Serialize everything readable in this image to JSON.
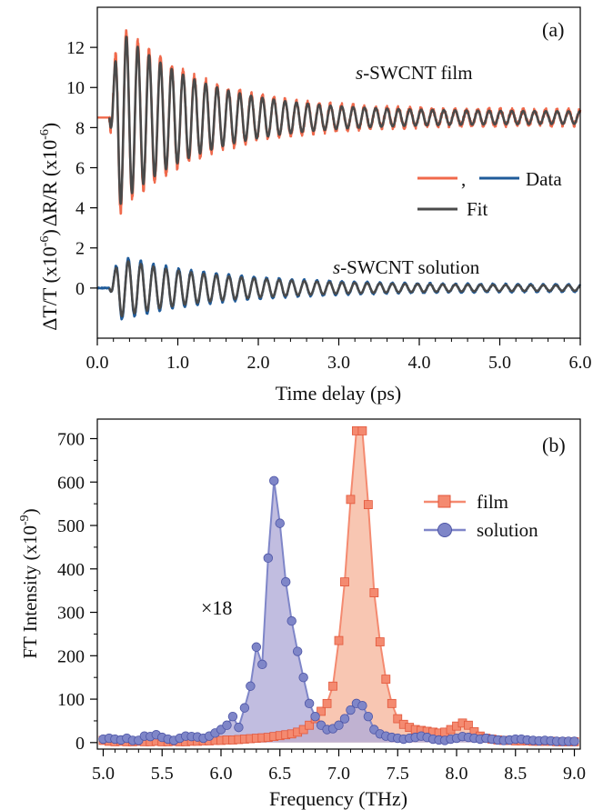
{
  "colors": {
    "film": "#f0694b",
    "film_fill": "#f7bca5",
    "film_marker": "#f48a70",
    "solution": "#1f5b9a",
    "solution_fill": "#b1acd8",
    "solution_marker": "#7f86c8",
    "fit": "#4a4a4a"
  },
  "chart_data": [
    {
      "type": "line",
      "panel_label": "(a)",
      "xlabel": "Time delay (ps)",
      "xlim": [
        0,
        6
      ],
      "xticks": [
        "0.0",
        "1.0",
        "2.0",
        "3.0",
        "4.0",
        "5.0",
        "6.0"
      ],
      "ylabel_top": "ΔR/R (x10",
      "ylabel_top_exp": "-6",
      "ylabel_bottom": "ΔT/T (x10",
      "ylabel_bottom_exp": "-6",
      "ylim": [
        -2.5,
        14
      ],
      "yticks": [
        "0",
        "2",
        "4",
        "6",
        "8",
        "10",
        "12"
      ],
      "legend": {
        "comma": ",",
        "data_label": "Data",
        "fit_label": "Fit",
        "placement": "right"
      },
      "annotations": [
        {
          "italic": "s",
          "rest": "-SWCNT film"
        },
        {
          "italic": "s",
          "rest": "-SWCNT solution"
        }
      ],
      "series": [
        {
          "role": "film-data",
          "baseline": 8.5,
          "t0": 0.15,
          "start_level": 8.5,
          "amplitude": 5.0,
          "decay_tau": 1.0,
          "residual_amplitude": 0.32,
          "frequency_thz": 7.1,
          "noise": 0.25
        },
        {
          "role": "film-fit",
          "baseline": 8.5,
          "t0": 0.15,
          "amplitude": 4.6,
          "decay_tau": 1.0,
          "residual_amplitude": 0.3,
          "frequency_thz": 7.1
        },
        {
          "role": "solution-data",
          "baseline": 0,
          "t0": 0.15,
          "amplitude": 1.6,
          "decay_tau": 1.3,
          "residual_amplitude": 0.15,
          "frequency_thz": 6.4,
          "noise": 0.08
        },
        {
          "role": "solution-fit",
          "baseline": 0,
          "t0": 0.15,
          "amplitude": 1.45,
          "decay_tau": 1.3,
          "residual_amplitude": 0.12,
          "frequency_thz": 6.4
        }
      ]
    },
    {
      "type": "area",
      "panel_label": "(b)",
      "xlabel": "Frequency (THz)",
      "xlim": [
        4.95,
        9.05
      ],
      "xticks": [
        "5.0",
        "5.5",
        "6.0",
        "6.5",
        "7.0",
        "7.5",
        "8.0",
        "8.5",
        "9.0"
      ],
      "ylabel": "FT Intensity (x10",
      "ylabel_exp": "-9",
      "ylim": [
        -15,
        745
      ],
      "yticks": [
        "0",
        "100",
        "200",
        "300",
        "400",
        "500",
        "600",
        "700"
      ],
      "annotation": "×18",
      "series": [
        {
          "name": "film",
          "marker": "square",
          "x": [
            5.0,
            5.05,
            5.1,
            5.15,
            5.2,
            5.25,
            5.3,
            5.35,
            5.4,
            5.45,
            5.5,
            5.55,
            5.6,
            5.65,
            5.7,
            5.75,
            5.8,
            5.85,
            5.9,
            5.95,
            6.0,
            6.05,
            6.1,
            6.15,
            6.2,
            6.25,
            6.3,
            6.35,
            6.4,
            6.45,
            6.5,
            6.55,
            6.6,
            6.65,
            6.7,
            6.75,
            6.8,
            6.85,
            6.9,
            6.95,
            7.0,
            7.05,
            7.1,
            7.15,
            7.2,
            7.25,
            7.3,
            7.35,
            7.4,
            7.45,
            7.5,
            7.55,
            7.6,
            7.65,
            7.7,
            7.75,
            7.8,
            7.85,
            7.9,
            7.95,
            8.0,
            8.05,
            8.1,
            8.15,
            8.2,
            8.25,
            8.3,
            8.35,
            8.4,
            8.45,
            8.5,
            8.55,
            8.6,
            8.65,
            8.7,
            8.75,
            8.8,
            8.85,
            8.9,
            8.95,
            9.0
          ],
          "y": [
            5,
            3,
            2,
            3,
            2,
            2,
            3,
            2,
            2,
            3,
            2,
            2,
            3,
            2,
            2,
            3,
            3,
            4,
            4,
            5,
            5,
            6,
            6,
            7,
            8,
            9,
            10,
            11,
            12,
            14,
            16,
            18,
            20,
            24,
            30,
            40,
            55,
            72,
            90,
            130,
            235,
            370,
            560,
            718,
            718,
            548,
            345,
            232,
            146,
            90,
            55,
            42,
            35,
            30,
            28,
            26,
            24,
            22,
            24,
            30,
            38,
            45,
            40,
            25,
            15,
            10,
            8,
            6,
            5,
            5,
            4,
            4,
            4,
            3,
            3,
            3,
            3,
            2,
            2,
            2,
            2
          ]
        },
        {
          "name": "solution",
          "marker": "circle",
          "x": [
            5.0,
            5.05,
            5.1,
            5.15,
            5.2,
            5.25,
            5.3,
            5.35,
            5.4,
            5.45,
            5.5,
            5.55,
            5.6,
            5.65,
            5.7,
            5.75,
            5.8,
            5.85,
            5.9,
            5.95,
            6.0,
            6.05,
            6.1,
            6.15,
            6.2,
            6.25,
            6.3,
            6.35,
            6.4,
            6.45,
            6.5,
            6.55,
            6.6,
            6.65,
            6.7,
            6.75,
            6.8,
            6.85,
            6.9,
            6.95,
            7.0,
            7.05,
            7.1,
            7.15,
            7.2,
            7.25,
            7.3,
            7.35,
            7.4,
            7.45,
            7.5,
            7.55,
            7.6,
            7.65,
            7.7,
            7.75,
            7.8,
            7.85,
            7.9,
            7.95,
            8.0,
            8.05,
            8.1,
            8.15,
            8.2,
            8.25,
            8.3,
            8.35,
            8.4,
            8.45,
            8.5,
            8.55,
            8.6,
            8.65,
            8.7,
            8.75,
            8.8,
            8.85,
            8.9,
            8.95,
            9.0
          ],
          "y": [
            8,
            10,
            8,
            6,
            10,
            5,
            5,
            15,
            14,
            18,
            12,
            8,
            5,
            10,
            15,
            14,
            13,
            10,
            15,
            22,
            30,
            40,
            60,
            35,
            80,
            130,
            220,
            180,
            425,
            603,
            505,
            370,
            280,
            210,
            150,
            90,
            60,
            40,
            30,
            32,
            40,
            55,
            75,
            90,
            85,
            60,
            30,
            20,
            15,
            12,
            10,
            8,
            10,
            12,
            15,
            12,
            8,
            6,
            5,
            8,
            10,
            14,
            12,
            10,
            8,
            10,
            8,
            6,
            5,
            6,
            8,
            8,
            6,
            5,
            4,
            5,
            4,
            3,
            3,
            3,
            3
          ]
        }
      ]
    }
  ]
}
